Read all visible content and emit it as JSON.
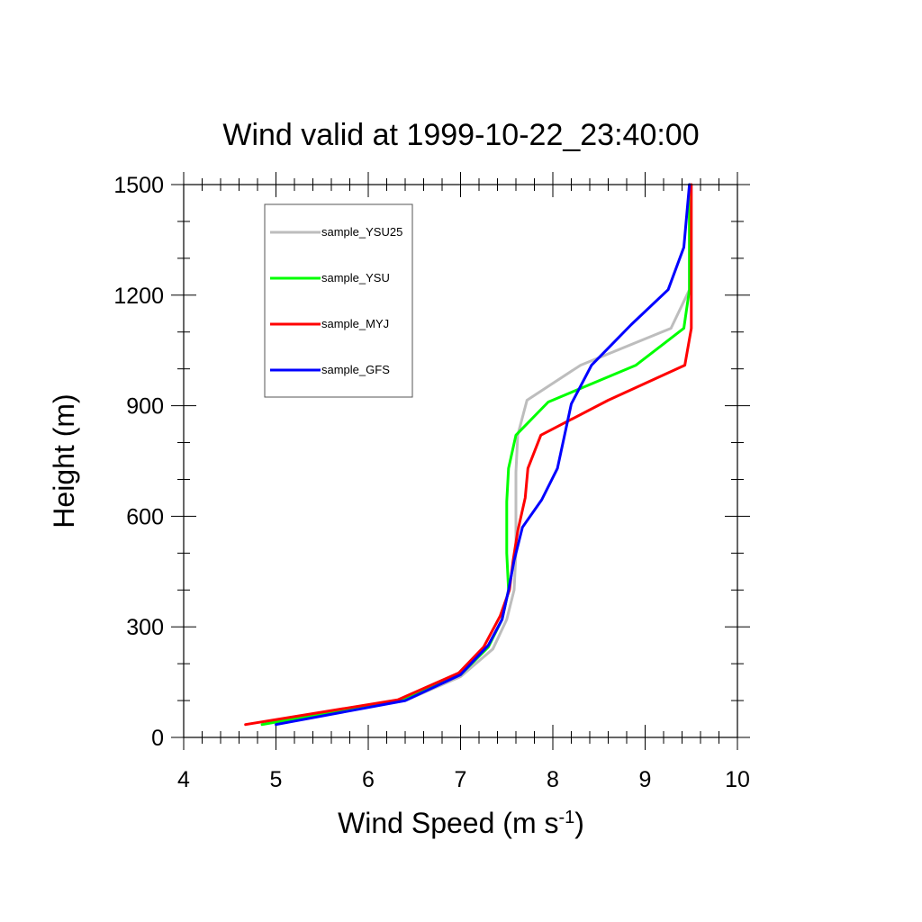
{
  "chart_data": {
    "type": "line",
    "title": "Wind valid at 1999-10-22_23:40:00",
    "xlabel": "Wind Speed (m s",
    "xlabel_sup": "-1",
    "xlabel_end": ")",
    "ylabel": "Height (m)",
    "xlim": [
      4,
      10
    ],
    "ylim": [
      0,
      1500
    ],
    "xticks": [
      4,
      5,
      6,
      7,
      8,
      9,
      10
    ],
    "yticks": [
      0,
      300,
      600,
      900,
      1200,
      1500
    ],
    "xtick_labels": [
      "4",
      "5",
      "6",
      "7",
      "8",
      "9",
      "10"
    ],
    "ytick_labels": [
      "0",
      "300",
      "600",
      "900",
      "1200",
      "1500"
    ],
    "legend_position": "top-left",
    "series": [
      {
        "name": "sample_YSU25",
        "color": "#bdbdbd",
        "points": [
          [
            4.85,
            35
          ],
          [
            6.4,
            100
          ],
          [
            7.0,
            165
          ],
          [
            7.35,
            240
          ],
          [
            7.5,
            320
          ],
          [
            7.58,
            400
          ],
          [
            7.6,
            500
          ],
          [
            7.6,
            600
          ],
          [
            7.6,
            720
          ],
          [
            7.62,
            820
          ],
          [
            7.72,
            915
          ],
          [
            8.3,
            1010
          ],
          [
            9.28,
            1110
          ],
          [
            9.48,
            1215
          ],
          [
            9.48,
            1500
          ]
        ]
      },
      {
        "name": "sample_YSU",
        "color": "#00ff00",
        "points": [
          [
            4.85,
            35
          ],
          [
            6.4,
            105
          ],
          [
            7.0,
            170
          ],
          [
            7.3,
            245
          ],
          [
            7.45,
            320
          ],
          [
            7.52,
            400
          ],
          [
            7.5,
            500
          ],
          [
            7.5,
            640
          ],
          [
            7.52,
            730
          ],
          [
            7.6,
            820
          ],
          [
            7.95,
            910
          ],
          [
            8.9,
            1010
          ],
          [
            9.42,
            1110
          ],
          [
            9.48,
            1215
          ],
          [
            9.48,
            1500
          ]
        ]
      },
      {
        "name": "sample_MYJ",
        "color": "#ff0000",
        "points": [
          [
            4.67,
            35
          ],
          [
            6.32,
            102
          ],
          [
            6.98,
            175
          ],
          [
            7.25,
            245
          ],
          [
            7.43,
            330
          ],
          [
            7.53,
            400
          ],
          [
            7.57,
            480
          ],
          [
            7.62,
            560
          ],
          [
            7.7,
            650
          ],
          [
            7.73,
            730
          ],
          [
            7.87,
            820
          ],
          [
            8.6,
            915
          ],
          [
            9.43,
            1010
          ],
          [
            9.5,
            1110
          ],
          [
            9.5,
            1215
          ],
          [
            9.5,
            1500
          ]
        ]
      },
      {
        "name": "sample_GFS",
        "color": "#0000ff",
        "points": [
          [
            5.0,
            35
          ],
          [
            6.4,
            100
          ],
          [
            7.0,
            170
          ],
          [
            7.3,
            250
          ],
          [
            7.45,
            320
          ],
          [
            7.52,
            400
          ],
          [
            7.58,
            480
          ],
          [
            7.67,
            570
          ],
          [
            7.88,
            645
          ],
          [
            8.05,
            730
          ],
          [
            8.2,
            905
          ],
          [
            8.42,
            1010
          ],
          [
            8.85,
            1120
          ],
          [
            9.25,
            1215
          ],
          [
            9.42,
            1330
          ],
          [
            9.48,
            1500
          ]
        ]
      }
    ]
  }
}
